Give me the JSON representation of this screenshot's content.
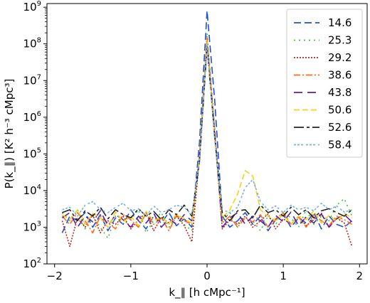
{
  "chart_data": {
    "type": "line",
    "title": "",
    "xlabel": "k_∥ [h cMpc⁻¹]",
    "ylabel": "P(k_∥) [K² h⁻³ cMpc³]",
    "xlim": [
      -2.1,
      2.1
    ],
    "ylim_log10": [
      2,
      9.1
    ],
    "y_scale": "log",
    "grid": false,
    "legend_position": "top-right",
    "x_ticks": [
      -2,
      -1,
      0,
      1,
      2
    ],
    "x_tick_labels": [
      "−2",
      "−1",
      "0",
      "1",
      "2"
    ],
    "y_tick_exponents": [
      2,
      3,
      4,
      5,
      6,
      7,
      8,
      9
    ],
    "x": [
      -1.9,
      -1.8,
      -1.7,
      -1.6,
      -1.5,
      -1.4,
      -1.3,
      -1.2,
      -1.1,
      -1.0,
      -0.9,
      -0.8,
      -0.7,
      -0.6,
      -0.5,
      -0.4,
      -0.3,
      -0.2,
      -0.1,
      0.0,
      0.1,
      0.2,
      0.3,
      0.4,
      0.5,
      0.6,
      0.7,
      0.8,
      0.9,
      1.0,
      1.1,
      1.2,
      1.3,
      1.4,
      1.5,
      1.6,
      1.7,
      1.8,
      1.9
    ],
    "series": [
      {
        "name": "14.6",
        "color": "#1f4fd8",
        "dash": "10,5",
        "values": [
          700,
          2000,
          1500,
          2500,
          1000,
          2200,
          800,
          1800,
          1200,
          3000,
          1500,
          900,
          2000,
          1300,
          2500,
          1100,
          1700,
          1000,
          200000,
          800000000,
          3000000,
          2000,
          1000,
          1500,
          2500,
          1200,
          2000,
          800,
          1600,
          2200,
          1000,
          1800,
          1300,
          2500,
          900,
          2000,
          1200,
          1000,
          1500
        ]
      },
      {
        "name": "25.3",
        "color": "#39c339",
        "dash": "2,5",
        "values": [
          2500,
          1500,
          3000,
          900,
          2000,
          1000,
          500,
          2000,
          1200,
          1600,
          3000,
          700,
          1500,
          2500,
          1000,
          2000,
          1200,
          800,
          100000,
          200000000,
          500000,
          1500,
          2500,
          1000,
          3000,
          1500,
          800,
          2000,
          1200,
          2500,
          1800,
          1000,
          3000,
          1200,
          2000,
          1500,
          4000,
          6000,
          2000
        ]
      },
      {
        "name": "29.2",
        "color": "#c0241a",
        "dash": "2,2",
        "values": [
          1500,
          300,
          1800,
          1000,
          2200,
          700,
          1500,
          1200,
          2000,
          900,
          1600,
          2500,
          800,
          1800,
          1300,
          2000,
          1100,
          400,
          80000,
          150000000,
          400000,
          900,
          1600,
          1200,
          2000,
          1000,
          1500,
          2300,
          900,
          1700,
          1200,
          2000,
          1100,
          1600,
          2400,
          1000,
          1800,
          1300,
          300
        ]
      },
      {
        "name": "38.6",
        "color": "#ff6a1a",
        "dash": "9,3,2,3",
        "values": [
          2000,
          1200,
          2500,
          1500,
          700,
          2000,
          1300,
          900,
          2200,
          1600,
          1000,
          2400,
          1200,
          1800,
          800,
          2100,
          1500,
          1200,
          90000,
          150000000,
          450000,
          1300,
          2000,
          1000,
          1800,
          1400,
          2200,
          1000,
          1700,
          2500,
          1200,
          1900,
          1000,
          2200,
          1500,
          1100,
          2000,
          1600,
          1200
        ]
      },
      {
        "name": "43.8",
        "color": "#5a1f9c",
        "dash": "12,7",
        "values": [
          1800,
          2500,
          1000,
          2000,
          1400,
          2800,
          1100,
          2200,
          1600,
          1000,
          2000,
          1300,
          2400,
          1000,
          1700,
          1200,
          2200,
          1500,
          70000,
          100000000,
          350000,
          1000,
          1800,
          2500,
          1200,
          2000,
          1500,
          1000,
          2100,
          1400,
          2600,
          1100,
          1900,
          1300,
          2300,
          1000,
          1700,
          2200,
          1400
        ]
      },
      {
        "name": "50.6",
        "color": "#f2d21a",
        "dash": "8,4",
        "values": [
          2200,
          1600,
          3000,
          1200,
          2400,
          1800,
          1000,
          2600,
          1400,
          2000,
          1100,
          2700,
          1500,
          1900,
          1200,
          2300,
          1700,
          1300,
          80000,
          120000000,
          300000,
          1800,
          3000,
          8000,
          35000,
          25000,
          3000,
          2000,
          1500,
          2200,
          1200,
          2000,
          1600,
          2800,
          1300,
          2100,
          1500,
          2400,
          1800
        ]
      },
      {
        "name": "52.6",
        "color": "#222222",
        "dash": "14,4,4,4",
        "values": [
          2500,
          3000,
          1500,
          2800,
          2000,
          3500,
          1700,
          3000,
          2200,
          1800,
          3200,
          2000,
          2700,
          1600,
          3000,
          2200,
          4000,
          2000,
          60000,
          90000000,
          300000,
          2500,
          1500,
          2800,
          3000,
          1800,
          4000,
          2500,
          3000,
          2000,
          3500,
          2200,
          3000,
          1800,
          2800,
          3200,
          2500,
          2000,
          3000
        ]
      },
      {
        "name": "58.4",
        "color": "#74b3e0",
        "dash": "3,2,3,2,3,4",
        "values": [
          3000,
          3500,
          2000,
          4000,
          5000,
          3000,
          2500,
          3500,
          4500,
          2800,
          3200,
          2000,
          3800,
          2500,
          3000,
          4000,
          3500,
          2200,
          70000,
          100000000,
          250000,
          3000,
          2500,
          3500,
          12000,
          20000,
          5000,
          3000,
          3800,
          2500,
          4000,
          3000,
          3500,
          2800,
          4500,
          3000,
          3800,
          2600,
          3000
        ]
      }
    ]
  }
}
